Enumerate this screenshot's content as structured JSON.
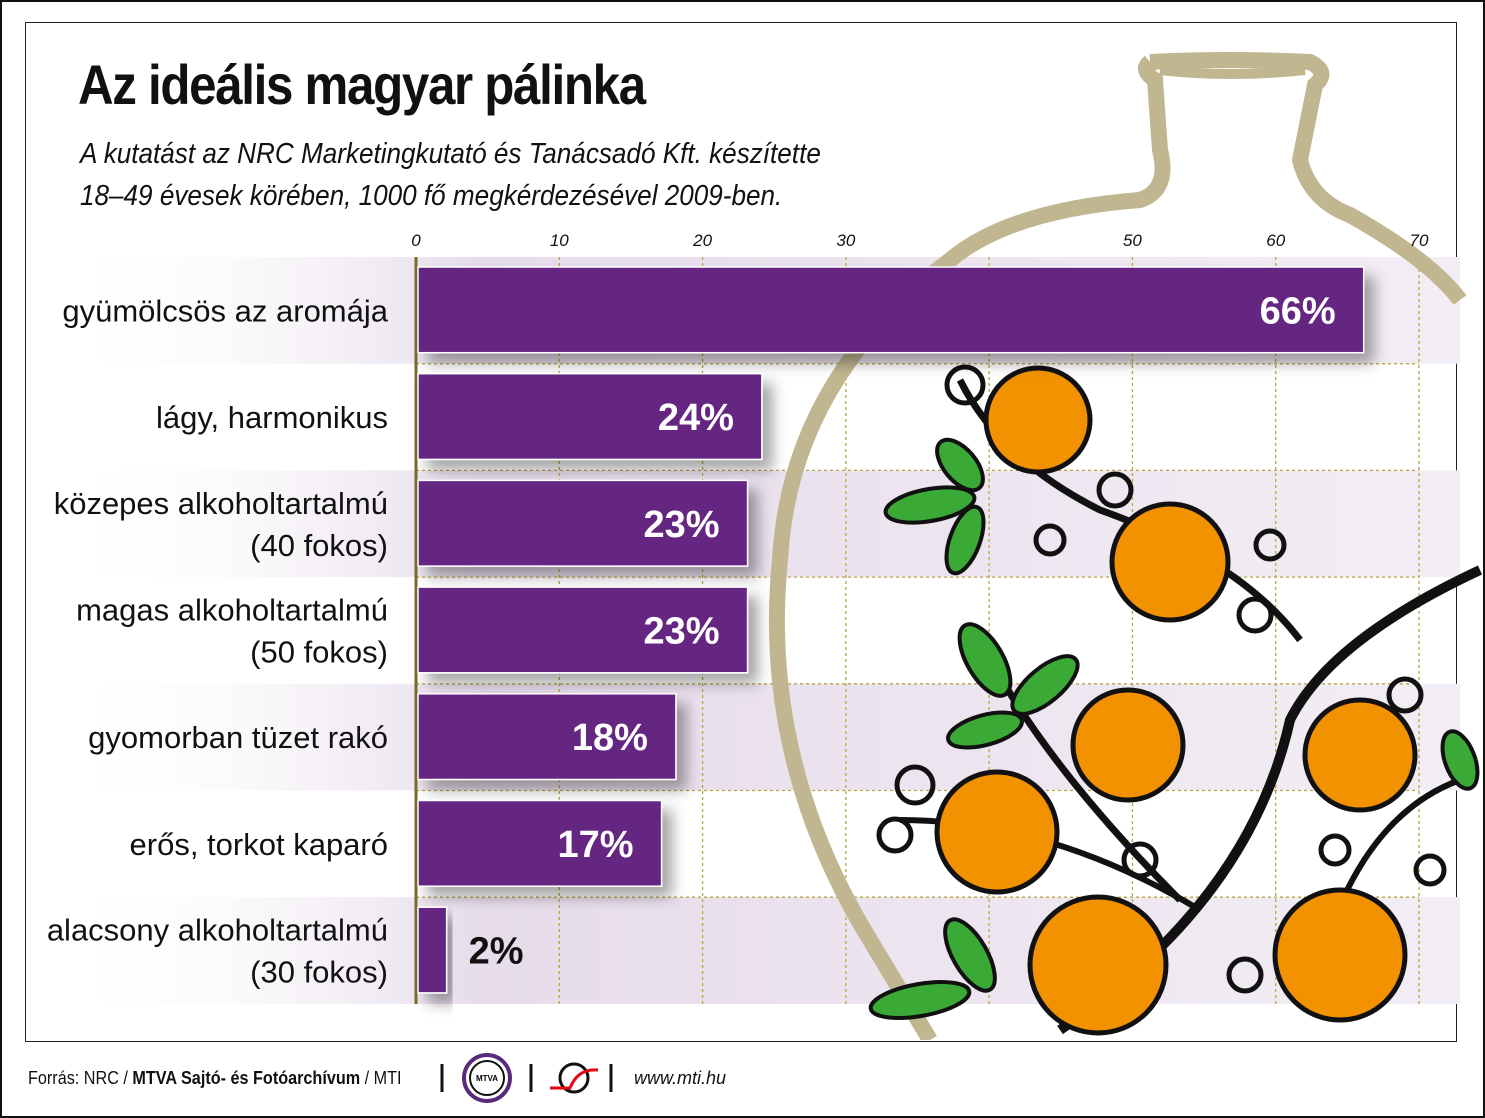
{
  "title": "Az ideális magyar pálinka",
  "subtitle": [
    "A kutatást az NRC Marketingkutató és Tanácsadó Kft. készítette",
    "18–49 évesek körében, 1000 fő megkérdezésével 2009-ben."
  ],
  "chart_data": {
    "type": "bar",
    "orientation": "horizontal",
    "categories": [
      "gyümölcsös az aromája",
      "lágy, harmonikus",
      "közepes alkoholtartalmú (40 fokos)",
      "magas alkoholtartalmú (50 fokos)",
      "gyomorban tüzet rakó",
      "erős, torkot kaparó",
      "alacsony alkoholtartalmú (30 fokos)"
    ],
    "category_lines": [
      [
        "gyümölcsös az aromája"
      ],
      [
        "lágy, harmonikus"
      ],
      [
        "közepes alkoholtartalmú",
        "(40 fokos)"
      ],
      [
        "magas alkoholtartalmú",
        "(50 fokos)"
      ],
      [
        "gyomorban tüzet rakó"
      ],
      [
        "erős, torkot kaparó"
      ],
      [
        "alacsony alkoholtartalmú",
        "(30 fokos)"
      ]
    ],
    "values": [
      66,
      24,
      23,
      23,
      18,
      17,
      2
    ],
    "data_labels": [
      "66%",
      "24%",
      "23%",
      "23%",
      "18%",
      "17%",
      "2%"
    ],
    "xticks": [
      "0",
      "10",
      "20",
      "30",
      "50",
      "60",
      "70"
    ],
    "xtick_values": [
      0,
      10,
      20,
      30,
      50,
      60,
      70
    ],
    "xlim": [
      0,
      70
    ],
    "grid": true,
    "bar_color": "#652582"
  },
  "footer": {
    "source_prefix": "Forrás: NRC / ",
    "source_bold": "MTVA Sajtó- és Fotóarchívum",
    "source_suffix": " / MTI",
    "logo_text": "MTVA",
    "website": "www.mti.hu"
  }
}
